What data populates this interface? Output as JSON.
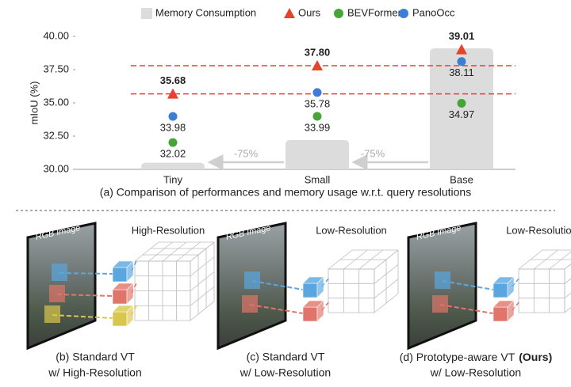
{
  "chart_data": {
    "type": "bar",
    "legend": [
      "Memory Consumption"
    ],
    "categories": [
      "Tiny",
      "Small",
      "Base"
    ],
    "values": [
      30.5,
      32.2,
      39.1
    ],
    "color": "#dcdcdc",
    "series": [
      {
        "name": "Ours",
        "color": "#e8412c",
        "marker": "triangle",
        "values": [
          35.68,
          37.8,
          39.01
        ],
        "value_labels": [
          "35.68",
          "37.80",
          "39.01"
        ]
      },
      {
        "name": "BEVFormer",
        "color": "#45a637",
        "marker": "circle",
        "values": [
          32.02,
          33.99,
          34.97
        ],
        "value_labels": [
          "32.02",
          "33.99",
          "34.97"
        ]
      },
      {
        "name": "PanoOcc",
        "color": "#3a7fd5",
        "marker": "circle",
        "values": [
          33.98,
          35.78,
          38.11
        ],
        "value_labels": [
          "33.98",
          "35.78",
          "38.11"
        ]
      }
    ],
    "ylabel": "mIoU (%)",
    "ylim": [
      30,
      40
    ],
    "yticks": [
      {
        "value": 30,
        "label": "30.00"
      },
      {
        "value": 32.5,
        "label": "32.50"
      },
      {
        "value": 35,
        "label": "35.00"
      },
      {
        "value": 37.5,
        "label": "37.50"
      },
      {
        "value": 40,
        "label": "40.00"
      }
    ],
    "annotations": [
      "-75%",
      "-75%"
    ],
    "caption": "(a) Comparison of performances and memory usage w.r.t. query resolutions"
  },
  "panels": [
    {
      "image_label": "RGB Image",
      "grid_label": "High-Resolution",
      "caption": [
        "(b) Standard VT",
        "w/ High-Resolution"
      ]
    },
    {
      "image_label": "RGB Image",
      "grid_label": "Low-Resolution",
      "caption": [
        "(c) Standard VT",
        "w/ Low-Resolution"
      ]
    },
    {
      "image_label": "RGB Image",
      "grid_label": "Low-Resolution",
      "caption": [
        "(d) Prototype-aware VT",
        "w/ Low-Resolution"
      ],
      "caption_bold": "(Ours)"
    }
  ]
}
